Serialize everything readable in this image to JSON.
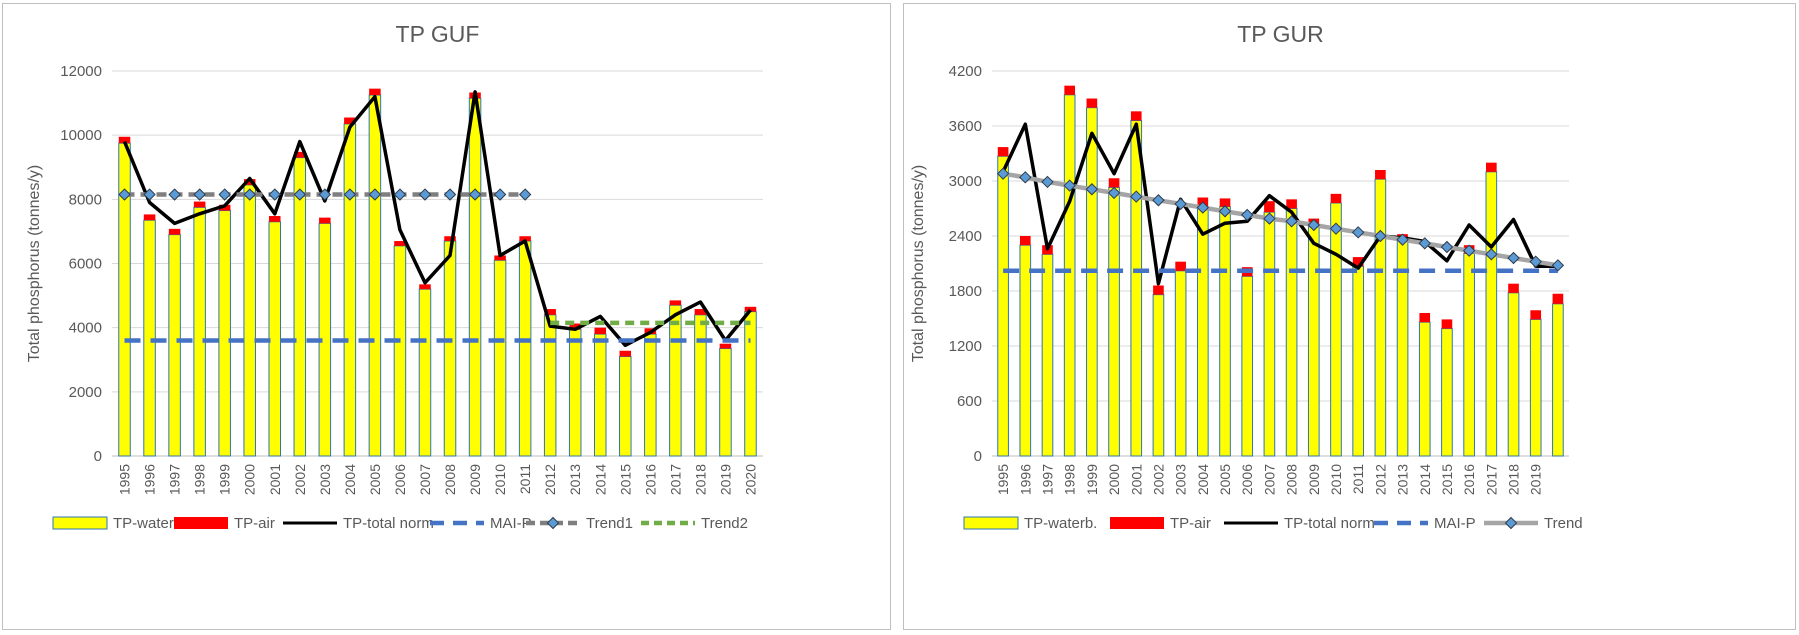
{
  "chart_data": [
    {
      "type": "bar",
      "title": "TP GUF",
      "ylabel": "Total phosphorus (tonnes/y)",
      "xlabel": "",
      "ylim": [
        0,
        12000
      ],
      "yticks": [
        0,
        2000,
        4000,
        6000,
        8000,
        10000,
        12000
      ],
      "categories": [
        "1995",
        "1996",
        "1997",
        "1998",
        "1999",
        "2000",
        "2001",
        "2002",
        "2003",
        "2004",
        "2005",
        "2006",
        "2007",
        "2008",
        "2009",
        "2010",
        "2011",
        "2012",
        "2013",
        "2014",
        "2015",
        "2016",
        "2017",
        "2018",
        "2019",
        "2020"
      ],
      "series": [
        {
          "name": "TP-waterb.",
          "kind": "stacked-bar",
          "color": "#ffff00",
          "border": "#2e75b6",
          "values": [
            9750,
            7350,
            6900,
            7750,
            7650,
            8450,
            7300,
            9300,
            7250,
            10350,
            11250,
            6550,
            5200,
            6700,
            11150,
            6100,
            6700,
            4400,
            3950,
            3800,
            3100,
            3800,
            4700,
            4400,
            3350,
            4500
          ]
        },
        {
          "name": "TP-air",
          "kind": "stacked-bar",
          "color": "#ff0000",
          "values": [
            200,
            180,
            180,
            180,
            180,
            180,
            180,
            180,
            180,
            200,
            200,
            150,
            150,
            150,
            180,
            150,
            150,
            180,
            180,
            200,
            180,
            180,
            150,
            180,
            150,
            150
          ]
        },
        {
          "name": "TP-total norm",
          "kind": "line",
          "color": "#000000",
          "values": [
            9800,
            7900,
            7250,
            7550,
            7800,
            8650,
            7550,
            9800,
            7950,
            10250,
            11200,
            7050,
            5400,
            6250,
            11350,
            6250,
            6700,
            4050,
            3950,
            4350,
            3450,
            3850,
            4400,
            4800,
            3600,
            4550
          ]
        },
        {
          "name": "MAI-P",
          "kind": "dashed-line",
          "color": "#4472c4",
          "values": [
            3600,
            3600,
            3600,
            3600,
            3600,
            3600,
            3600,
            3600,
            3600,
            3600,
            3600,
            3600,
            3600,
            3600,
            3600,
            3600,
            3600,
            3600,
            3600,
            3600,
            3600,
            3600,
            3600,
            3600,
            3600,
            3600
          ]
        },
        {
          "name": "Trend1",
          "kind": "dashed-marker-line",
          "color": "#7f7f7f",
          "marker": "#5b9bd5",
          "values": [
            8150,
            8150,
            8150,
            8150,
            8150,
            8150,
            8150,
            8150,
            8150,
            8150,
            8150,
            8150,
            8150,
            8150,
            8150,
            8150,
            8150,
            null,
            null,
            null,
            null,
            null,
            null,
            null,
            null,
            null
          ]
        },
        {
          "name": "Trend2",
          "kind": "dashed-line",
          "color": "#70ad47",
          "values": [
            null,
            null,
            null,
            null,
            null,
            null,
            null,
            null,
            null,
            null,
            null,
            null,
            null,
            null,
            null,
            null,
            null,
            4150,
            4150,
            4150,
            4150,
            4150,
            4150,
            4150,
            4150,
            4150
          ]
        }
      ],
      "legend": "bottom",
      "grid": true
    },
    {
      "type": "bar",
      "title": "TP GUR",
      "ylabel": "Total phosphorus (tonnes/y)",
      "xlabel": "",
      "ylim": [
        0,
        4200
      ],
      "yticks": [
        0,
        600,
        1200,
        1800,
        2400,
        3000,
        3600,
        4200
      ],
      "categories": [
        "1995",
        "1996",
        "1997",
        "1998",
        "1999",
        "2000",
        "2001",
        "2002",
        "2003",
        "2004",
        "2005",
        "2006",
        "2007",
        "2008",
        "2009",
        "2010",
        "2011",
        "2012",
        "2013",
        "2014",
        "2015",
        "2016",
        "2017",
        "2018",
        "2019",
        ""
      ],
      "series": [
        {
          "name": "TP-waterb.",
          "kind": "stacked-bar",
          "color": "#ffff00",
          "border": "#2e75b6",
          "values": [
            3270,
            2300,
            2200,
            3940,
            3800,
            2930,
            3660,
            1760,
            2020,
            2720,
            2720,
            1960,
            2660,
            2700,
            2500,
            2760,
            2070,
            3020,
            2360,
            1460,
            1390,
            2210,
            3100,
            1780,
            1490,
            1660
          ]
        },
        {
          "name": "TP-air",
          "kind": "stacked-bar",
          "color": "#ff0000",
          "values": [
            100,
            100,
            100,
            100,
            100,
            100,
            100,
            100,
            100,
            100,
            90,
            100,
            120,
            100,
            90,
            100,
            100,
            100,
            60,
            100,
            100,
            90,
            100,
            100,
            100,
            110
          ]
        },
        {
          "name": "TP-total norm",
          "kind": "line",
          "color": "#000000",
          "values": [
            3100,
            3620,
            2260,
            2780,
            3520,
            3080,
            3620,
            1880,
            2800,
            2420,
            2540,
            2560,
            2840,
            2660,
            2320,
            2200,
            2050,
            2400,
            2380,
            2340,
            2130,
            2520,
            2280,
            2580,
            2070,
            2070
          ]
        },
        {
          "name": "MAI-P",
          "kind": "dashed-line",
          "color": "#4472c4",
          "values": [
            2020,
            2020,
            2020,
            2020,
            2020,
            2020,
            2020,
            2020,
            2020,
            2020,
            2020,
            2020,
            2020,
            2020,
            2020,
            2020,
            2020,
            2020,
            2020,
            2020,
            2020,
            2020,
            2020,
            2020,
            2020,
            2020
          ]
        },
        {
          "name": "Trend",
          "kind": "marker-line",
          "color": "#a5a5a5",
          "marker": "#5b9bd5",
          "values": [
            3080,
            3040,
            2990,
            2950,
            2910,
            2870,
            2830,
            2790,
            2750,
            2710,
            2670,
            2630,
            2590,
            2560,
            2520,
            2480,
            2440,
            2400,
            2360,
            2320,
            2280,
            2240,
            2200,
            2160,
            2120,
            2080
          ]
        }
      ],
      "legend": "bottom",
      "grid": true
    }
  ]
}
